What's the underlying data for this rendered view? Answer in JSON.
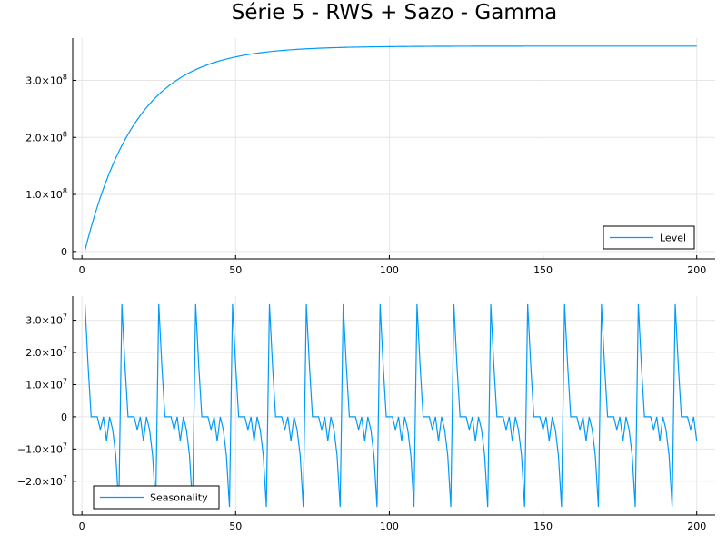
{
  "title": "Série 5 - RWS + Sazo - Gamma",
  "colors": {
    "series": "#009AF9",
    "grid": "#e6e6e6"
  },
  "chart_data": [
    {
      "type": "line",
      "name": "level-panel",
      "x_range": [
        1,
        200
      ],
      "xlim": [
        -3,
        206
      ],
      "ylim": [
        -13000000.0,
        374000000.0
      ],
      "x_ticks": [
        0,
        50,
        100,
        150,
        200
      ],
      "y_ticks": [
        {
          "value": 0,
          "mantissa": "0",
          "exponent": ""
        },
        {
          "value": 100000000.0,
          "mantissa": "1.0×10",
          "exponent": "8"
        },
        {
          "value": 200000000.0,
          "mantissa": "2.0×10",
          "exponent": "8"
        },
        {
          "value": 300000000.0,
          "mantissa": "3.0×10",
          "exponent": "8"
        }
      ],
      "grid": true,
      "legend_position": "bottom-right",
      "series": [
        {
          "name": "Level",
          "model": "saturating",
          "start": 2000000.0,
          "asymptote": 360000000.0,
          "rate": 0.06
        }
      ]
    },
    {
      "type": "line",
      "name": "seasonality-panel",
      "x_range": [
        1,
        200
      ],
      "xlim": [
        -3,
        206
      ],
      "ylim": [
        -30500000.0,
        37500000.0
      ],
      "x_ticks": [
        0,
        50,
        100,
        150,
        200
      ],
      "y_ticks": [
        {
          "value": -20000000.0,
          "mantissa": "−2.0×10",
          "exponent": "7"
        },
        {
          "value": -10000000.0,
          "mantissa": "−1.0×10",
          "exponent": "7"
        },
        {
          "value": 0,
          "mantissa": "0",
          "exponent": ""
        },
        {
          "value": 10000000.0,
          "mantissa": "1.0×10",
          "exponent": "7"
        },
        {
          "value": 20000000.0,
          "mantissa": "2.0×10",
          "exponent": "7"
        },
        {
          "value": 30000000.0,
          "mantissa": "3.0×10",
          "exponent": "7"
        }
      ],
      "grid": true,
      "legend_position": "bottom-left",
      "series": [
        {
          "name": "Seasonality",
          "model": "periodic",
          "period_values": [
            35000000.0,
            16000000.0,
            0,
            0,
            0,
            -4000000.0,
            0,
            -7500000.0,
            0,
            -4000000.0,
            -12000000.0,
            -28000000.0
          ]
        }
      ]
    }
  ]
}
